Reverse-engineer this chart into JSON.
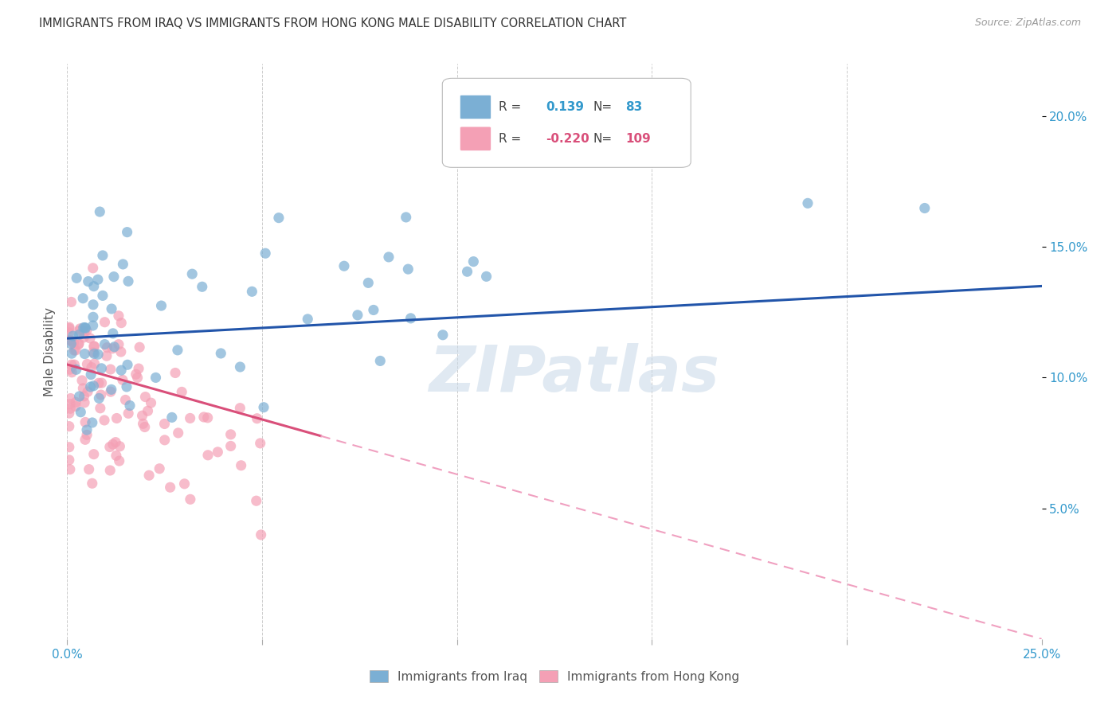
{
  "title": "IMMIGRANTS FROM IRAQ VS IMMIGRANTS FROM HONG KONG MALE DISABILITY CORRELATION CHART",
  "source": "Source: ZipAtlas.com",
  "ylabel": "Male Disability",
  "xlim": [
    0.0,
    0.25
  ],
  "ylim": [
    0.0,
    0.22
  ],
  "xticks": [
    0.0,
    0.05,
    0.1,
    0.15,
    0.2,
    0.25
  ],
  "xticklabels": [
    "0.0%",
    "",
    "",
    "",
    "",
    "25.0%"
  ],
  "yticks_right": [
    0.05,
    0.1,
    0.15,
    0.2
  ],
  "ytick_right_labels": [
    "5.0%",
    "10.0%",
    "15.0%",
    "20.0%"
  ],
  "blue_color": "#7BAFD4",
  "pink_color": "#F4A0B5",
  "trendline_blue": "#2255AA",
  "trendline_pink_solid": "#D94F7A",
  "trendline_pink_dashed": "#F0A0C0",
  "legend_R_blue": "0.139",
  "legend_N_blue": "83",
  "legend_R_pink": "-0.220",
  "legend_N_pink": "109",
  "legend_label_blue": "Immigrants from Iraq",
  "legend_label_pink": "Immigrants from Hong Kong",
  "watermark": "ZIPatlas",
  "background_color": "#FFFFFF",
  "grid_color": "#CCCCCC"
}
